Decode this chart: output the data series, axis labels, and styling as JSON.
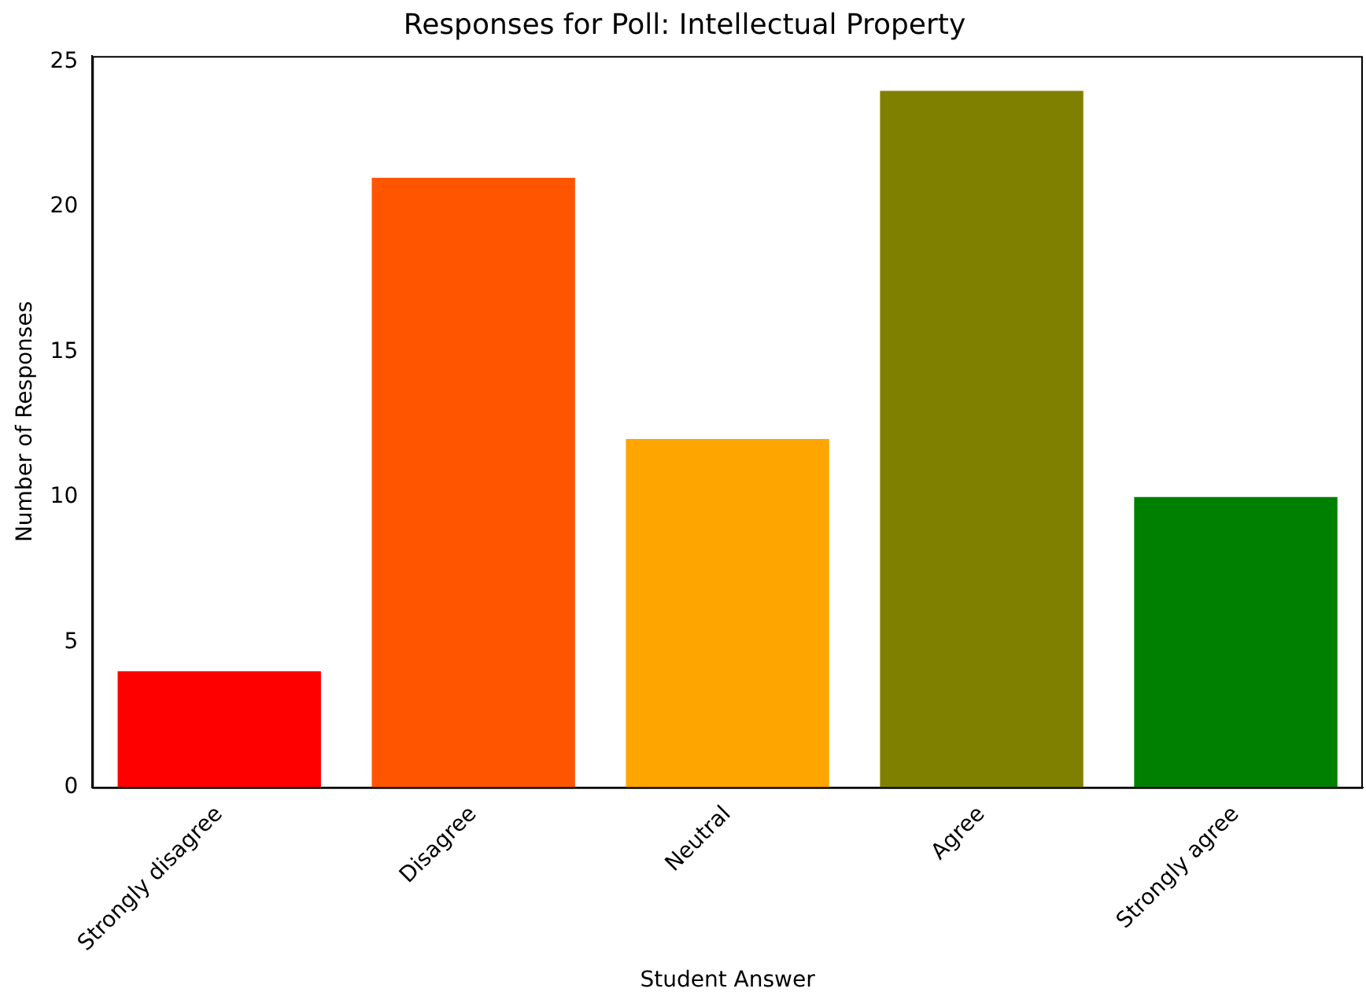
{
  "chart_data": {
    "type": "bar",
    "title": "Responses for Poll: Intellectual Property",
    "xlabel": "Student Answer",
    "ylabel": "Number of Responses",
    "categories": [
      "Strongly disagree",
      "Disagree",
      "Neutral",
      "Agree",
      "Strongly agree"
    ],
    "values": [
      4,
      21,
      12,
      24,
      10
    ],
    "colors": [
      "#ff0000",
      "#ff5500",
      "#ffa500",
      "#808000",
      "#008000"
    ],
    "ylim": [
      0,
      25.2
    ],
    "yticks": [
      0,
      5,
      10,
      15,
      20,
      25
    ],
    "grid": false,
    "legend": false
  }
}
